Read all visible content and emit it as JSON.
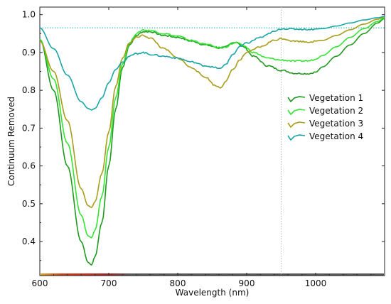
{
  "chart_data": {
    "type": "line",
    "title": "",
    "xlabel": "Wavelength (nm)",
    "ylabel": "Continuum Removed",
    "xlim": [
      600,
      1100
    ],
    "ylim": [
      0.31,
      1.02
    ],
    "x_ticks": [
      600,
      700,
      800,
      900,
      1000
    ],
    "y_ticks": [
      0.4,
      0.5,
      0.6,
      0.7,
      0.8,
      0.9,
      1.0
    ],
    "x_tick_labels": [
      "600",
      "700",
      "800",
      "900",
      "1000"
    ],
    "y_tick_labels": [
      "0.4",
      "0.5",
      "0.6",
      "0.7",
      "0.8",
      "0.9",
      "1.0"
    ],
    "grid": false,
    "legend_position": "right",
    "reference_lines": [
      {
        "orientation": "horizontal",
        "value": 0.965,
        "color": "#1aa6a6",
        "style": "dotted"
      },
      {
        "orientation": "vertical",
        "value": 950,
        "color": "#bbbbbb",
        "style": "dotted"
      }
    ],
    "series": [
      {
        "name": "Vegetation 1",
        "color": "#1f9a1f",
        "points": [
          [
            600,
            0.935
          ],
          [
            620,
            0.8
          ],
          [
            640,
            0.6
          ],
          [
            660,
            0.4
          ],
          [
            670,
            0.345
          ],
          [
            675,
            0.338
          ],
          [
            680,
            0.36
          ],
          [
            690,
            0.45
          ],
          [
            700,
            0.6
          ],
          [
            710,
            0.75
          ],
          [
            720,
            0.86
          ],
          [
            730,
            0.92
          ],
          [
            740,
            0.945
          ],
          [
            750,
            0.955
          ],
          [
            760,
            0.955
          ],
          [
            780,
            0.945
          ],
          [
            800,
            0.94
          ],
          [
            820,
            0.93
          ],
          [
            840,
            0.92
          ],
          [
            860,
            0.912
          ],
          [
            870,
            0.915
          ],
          [
            880,
            0.925
          ],
          [
            885,
            0.928
          ],
          [
            895,
            0.915
          ],
          [
            910,
            0.89
          ],
          [
            930,
            0.865
          ],
          [
            950,
            0.853
          ],
          [
            970,
            0.845
          ],
          [
            990,
            0.844
          ],
          [
            1000,
            0.848
          ],
          [
            1010,
            0.862
          ],
          [
            1030,
            0.89
          ],
          [
            1050,
            0.92
          ],
          [
            1070,
            0.95
          ],
          [
            1090,
            0.978
          ],
          [
            1100,
            0.99
          ]
        ]
      },
      {
        "name": "Vegetation 2",
        "color": "#33e533",
        "points": [
          [
            600,
            0.935
          ],
          [
            620,
            0.83
          ],
          [
            640,
            0.66
          ],
          [
            660,
            0.47
          ],
          [
            670,
            0.415
          ],
          [
            675,
            0.41
          ],
          [
            680,
            0.43
          ],
          [
            690,
            0.52
          ],
          [
            700,
            0.65
          ],
          [
            710,
            0.78
          ],
          [
            720,
            0.87
          ],
          [
            730,
            0.925
          ],
          [
            740,
            0.95
          ],
          [
            750,
            0.96
          ],
          [
            760,
            0.958
          ],
          [
            780,
            0.95
          ],
          [
            800,
            0.943
          ],
          [
            820,
            0.932
          ],
          [
            840,
            0.922
          ],
          [
            860,
            0.913
          ],
          [
            870,
            0.915
          ],
          [
            880,
            0.924
          ],
          [
            885,
            0.926
          ],
          [
            895,
            0.918
          ],
          [
            910,
            0.9
          ],
          [
            930,
            0.885
          ],
          [
            950,
            0.88
          ],
          [
            970,
            0.877
          ],
          [
            990,
            0.878
          ],
          [
            1000,
            0.882
          ],
          [
            1010,
            0.892
          ],
          [
            1030,
            0.915
          ],
          [
            1050,
            0.94
          ],
          [
            1070,
            0.963
          ],
          [
            1090,
            0.982
          ],
          [
            1100,
            0.992
          ]
        ]
      },
      {
        "name": "Vegetation 3",
        "color": "#a89e1a",
        "points": [
          [
            600,
            0.93
          ],
          [
            620,
            0.85
          ],
          [
            640,
            0.72
          ],
          [
            660,
            0.54
          ],
          [
            670,
            0.495
          ],
          [
            675,
            0.49
          ],
          [
            680,
            0.505
          ],
          [
            690,
            0.58
          ],
          [
            700,
            0.69
          ],
          [
            710,
            0.81
          ],
          [
            720,
            0.885
          ],
          [
            730,
            0.925
          ],
          [
            740,
            0.94
          ],
          [
            750,
            0.945
          ],
          [
            760,
            0.938
          ],
          [
            780,
            0.91
          ],
          [
            800,
            0.885
          ],
          [
            820,
            0.86
          ],
          [
            840,
            0.835
          ],
          [
            855,
            0.812
          ],
          [
            862,
            0.807
          ],
          [
            870,
            0.825
          ],
          [
            880,
            0.855
          ],
          [
            890,
            0.88
          ],
          [
            900,
            0.9
          ],
          [
            920,
            0.915
          ],
          [
            940,
            0.932
          ],
          [
            950,
            0.937
          ],
          [
            970,
            0.93
          ],
          [
            990,
            0.928
          ],
          [
            1010,
            0.932
          ],
          [
            1030,
            0.945
          ],
          [
            1050,
            0.96
          ],
          [
            1070,
            0.975
          ],
          [
            1090,
            0.988
          ],
          [
            1100,
            0.994
          ]
        ]
      },
      {
        "name": "Vegetation 4",
        "color": "#1aa6a6",
        "points": [
          [
            600,
            0.965
          ],
          [
            620,
            0.91
          ],
          [
            640,
            0.84
          ],
          [
            660,
            0.77
          ],
          [
            670,
            0.752
          ],
          [
            675,
            0.748
          ],
          [
            680,
            0.752
          ],
          [
            690,
            0.78
          ],
          [
            700,
            0.82
          ],
          [
            710,
            0.855
          ],
          [
            720,
            0.875
          ],
          [
            730,
            0.89
          ],
          [
            740,
            0.897
          ],
          [
            750,
            0.9
          ],
          [
            760,
            0.895
          ],
          [
            780,
            0.89
          ],
          [
            800,
            0.885
          ],
          [
            820,
            0.875
          ],
          [
            840,
            0.865
          ],
          [
            855,
            0.86
          ],
          [
            862,
            0.857
          ],
          [
            870,
            0.87
          ],
          [
            880,
            0.895
          ],
          [
            890,
            0.915
          ],
          [
            900,
            0.925
          ],
          [
            920,
            0.94
          ],
          [
            940,
            0.955
          ],
          [
            950,
            0.963
          ],
          [
            970,
            0.962
          ],
          [
            990,
            0.961
          ],
          [
            1010,
            0.963
          ],
          [
            1030,
            0.97
          ],
          [
            1050,
            0.978
          ],
          [
            1070,
            0.986
          ],
          [
            1090,
            0.992
          ],
          [
            1100,
            0.995
          ]
        ]
      }
    ]
  }
}
